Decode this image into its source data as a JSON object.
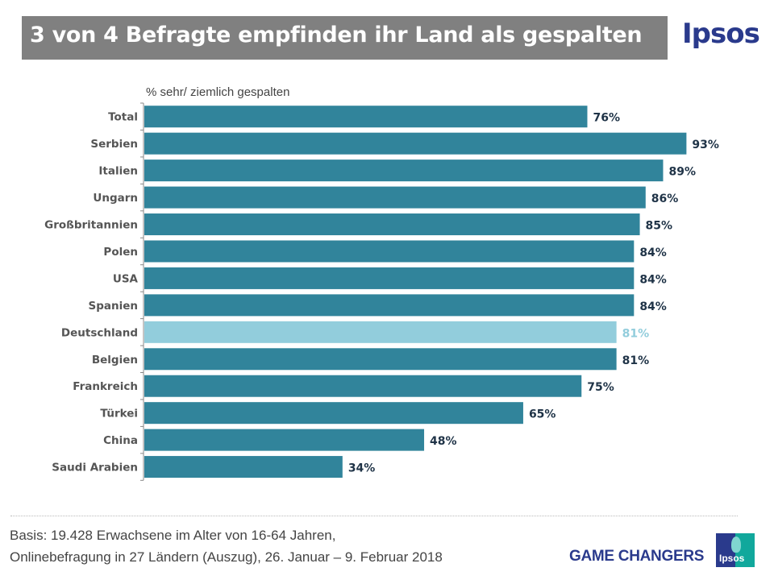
{
  "header": {
    "title": "3 von 4 Befragte empfinden ihr Land als gespalten",
    "brand": "Ipsos"
  },
  "chart_data": {
    "type": "bar",
    "orientation": "horizontal",
    "title": "3 von 4 Befragte empfinden ihr Land als gespalten",
    "subtitle": "% sehr/ ziemlich gespalten",
    "xlabel": "",
    "ylabel": "",
    "xlim": [
      0,
      100
    ],
    "grid": false,
    "categories": [
      "Total",
      "Serbien",
      "Italien",
      "Ungarn",
      "Großbritannien",
      "Polen",
      "USA",
      "Spanien",
      "Deutschland",
      "Belgien",
      "Frankreich",
      "Türkei",
      "China",
      "Saudi Arabien"
    ],
    "values": [
      76,
      93,
      89,
      86,
      85,
      84,
      84,
      84,
      81,
      81,
      75,
      65,
      48,
      34
    ],
    "labels": [
      "76%",
      "93%",
      "89%",
      "86%",
      "85%",
      "84%",
      "84%",
      "84%",
      "81%",
      "81%",
      "75%",
      "65%",
      "48%",
      "34%"
    ],
    "highlight": "Deutschland",
    "colors": {
      "bar": "#31849b",
      "highlight_bar": "#92cddc",
      "label": "#1f3347",
      "highlight_label": "#92cddc",
      "category_label": "#555555"
    }
  },
  "footer": {
    "line1": "Basis: 19.428 Erwachsene  im Alter von 16-64 Jahren,",
    "line2": "Onlinebefragung in 27 Ländern (Auszug),   26. Januar – 9. Februar 2018",
    "tagline": "GAME CHANGERS",
    "badge": "Ipsos"
  }
}
